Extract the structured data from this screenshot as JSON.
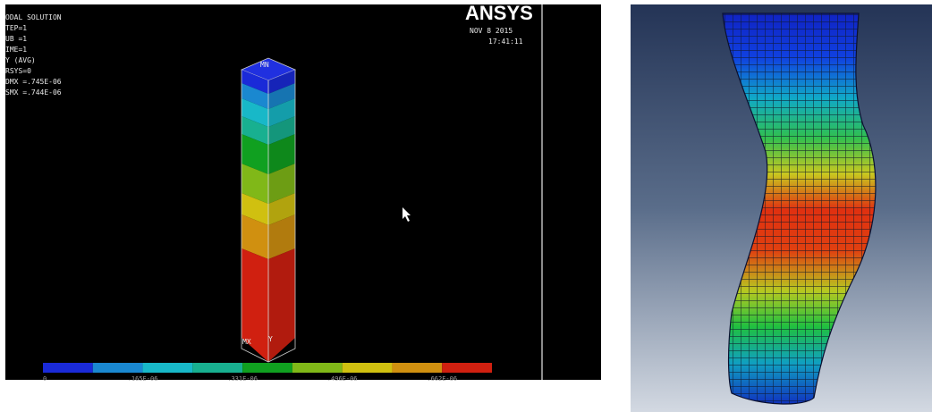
{
  "left_panel": {
    "info_lines": [
      "ODAL SOLUTION",
      "TEP=1",
      "UB =1",
      "IME=1",
      "Y      (AVG)",
      "RSYS=0",
      "DMX =.745E-06",
      "SMX =.744E-06"
    ],
    "logo": "ANSYS",
    "date": "NOV  8 2015",
    "time": "17:41:11",
    "min_label": "MN",
    "max_label": "MX",
    "axis_label": "Y",
    "legend_labels": [
      "0",
      ".165E-06",
      ".331E-06",
      ".496E-06",
      ".662E-06"
    ]
  }
}
